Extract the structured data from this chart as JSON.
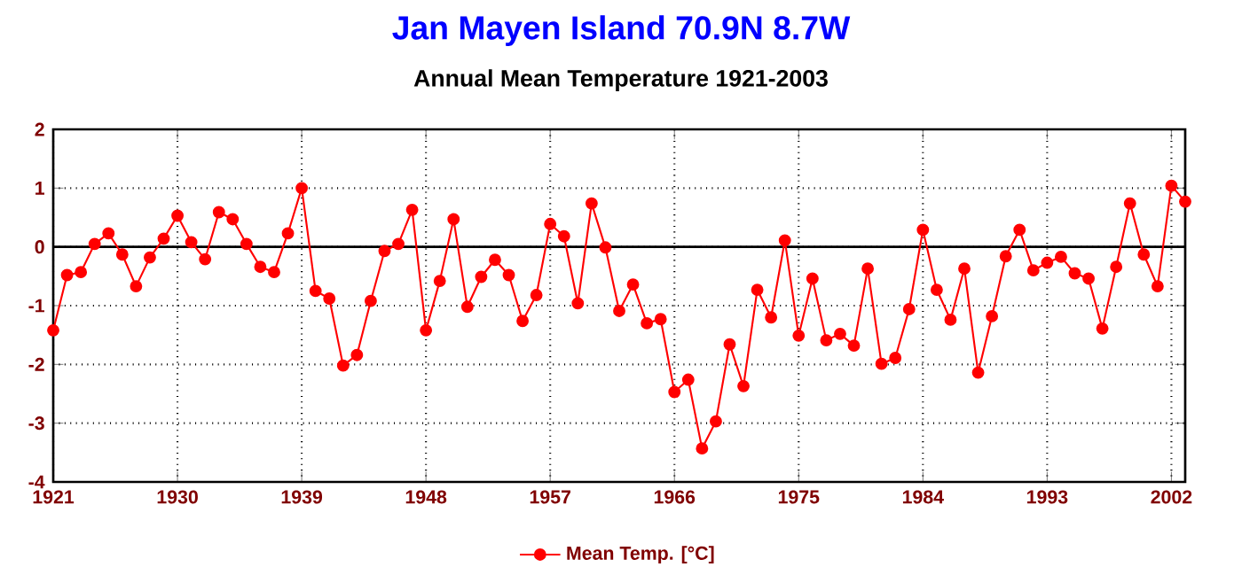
{
  "chart_data": {
    "type": "line",
    "title": "Jan Mayen Island  70.9N 8.7W",
    "subtitle": "Annual Mean Temperature 1921-2003",
    "x": [
      1921,
      1922,
      1923,
      1924,
      1925,
      1926,
      1927,
      1928,
      1929,
      1930,
      1931,
      1932,
      1933,
      1934,
      1935,
      1936,
      1937,
      1938,
      1939,
      1940,
      1941,
      1942,
      1943,
      1944,
      1945,
      1946,
      1947,
      1948,
      1949,
      1950,
      1951,
      1952,
      1953,
      1954,
      1955,
      1956,
      1957,
      1958,
      1959,
      1960,
      1961,
      1962,
      1963,
      1964,
      1965,
      1966,
      1967,
      1968,
      1969,
      1970,
      1971,
      1972,
      1973,
      1974,
      1975,
      1976,
      1977,
      1978,
      1979,
      1980,
      1981,
      1982,
      1983,
      1984,
      1985,
      1986,
      1987,
      1988,
      1989,
      1990,
      1991,
      1992,
      1993,
      1994,
      1995,
      1996,
      1997,
      1998,
      1999,
      2000,
      2001,
      2002,
      2003
    ],
    "series": [
      {
        "name": "Mean Temp. [°C]",
        "color": "#ff0000",
        "values": [
          -1.42,
          -0.48,
          -0.43,
          0.05,
          0.23,
          -0.13,
          -0.67,
          -0.18,
          0.14,
          0.53,
          0.08,
          -0.21,
          0.59,
          0.47,
          0.05,
          -0.34,
          -0.43,
          0.23,
          1.0,
          -0.75,
          -0.88,
          -2.02,
          -1.84,
          -0.92,
          -0.07,
          0.05,
          0.63,
          -1.42,
          -0.58,
          0.47,
          -1.02,
          -0.51,
          -0.22,
          -0.48,
          -1.26,
          -0.82,
          0.39,
          0.18,
          -0.96,
          0.74,
          -0.01,
          -1.09,
          -0.64,
          -1.3,
          -1.23,
          -2.47,
          -2.26,
          -3.43,
          -2.97,
          -1.66,
          -2.37,
          -0.73,
          -1.2,
          0.11,
          -1.51,
          -0.54,
          -1.59,
          -1.48,
          -1.68,
          -0.37,
          -1.99,
          -1.89,
          -1.06,
          0.29,
          -0.73,
          -1.24,
          -0.37,
          -2.14,
          -1.18,
          -0.16,
          0.29,
          -0.4,
          -0.27,
          -0.17,
          -0.45,
          -0.54,
          -1.39,
          -0.34,
          0.74,
          -0.13,
          -0.67,
          1.04,
          0.77
        ]
      }
    ],
    "xlim": [
      1921,
      2003
    ],
    "xticks": [
      1921,
      1930,
      1939,
      1948,
      1957,
      1966,
      1975,
      1984,
      1993,
      2002
    ],
    "ylim": [
      -4,
      2
    ],
    "yticks": [
      -4,
      -3,
      -2,
      -1,
      0,
      1,
      2
    ],
    "ref_lines": [
      {
        "axis": "y",
        "value": 0,
        "color": "#000000"
      }
    ],
    "grid": true,
    "legend": "bottom",
    "marker": "circle",
    "line_style": "solid"
  }
}
